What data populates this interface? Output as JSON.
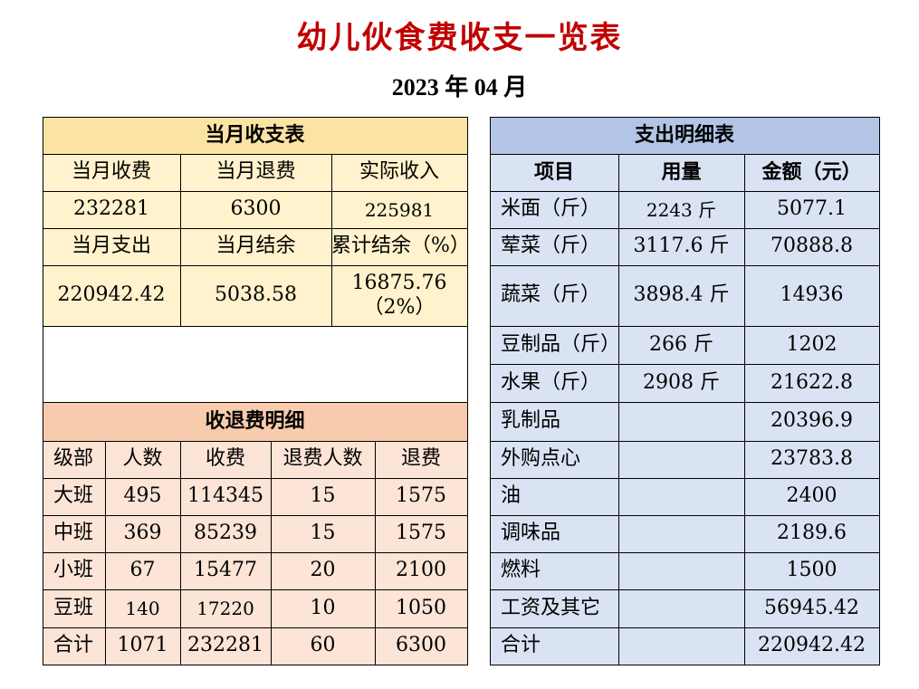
{
  "title": "幼儿伙食费收支一览表",
  "subtitle": "2023 年 04 月",
  "income_table": {
    "title": "当月收支表",
    "row1_labels": [
      "当月收费",
      "当月退费",
      "实际收入"
    ],
    "row1_values": [
      "232281",
      "6300",
      "225981"
    ],
    "row2_labels": [
      "当月支出",
      "当月结余",
      "累计结余（%）"
    ],
    "row2_values": [
      "220942.42",
      "5038.58",
      "16875.76",
      "（2%）"
    ]
  },
  "refund_table": {
    "title": "收退费明细",
    "headers": [
      "级部",
      "人数",
      "收费",
      "退费人数",
      "退费"
    ],
    "rows": [
      [
        "大班",
        "495",
        "114345",
        "15",
        "1575"
      ],
      [
        "中班",
        "369",
        "85239",
        "15",
        "1575"
      ],
      [
        "小班",
        "67",
        "15477",
        "20",
        "2100"
      ],
      [
        "豆班",
        "140",
        "17220",
        "10",
        "1050"
      ],
      [
        "合计",
        "1071",
        "232281",
        "60",
        "6300"
      ]
    ]
  },
  "expense_table": {
    "title": "支出明细表",
    "headers": [
      "项目",
      "用量",
      "金额（元）"
    ],
    "rows": [
      [
        "米面（斤）",
        "2243 斤",
        "5077.1"
      ],
      [
        "荤菜（斤）",
        "3117.6 斤",
        "70888.8"
      ],
      [
        "蔬菜（斤）",
        "3898.4 斤",
        "14936"
      ],
      [
        "豆制品（斤）",
        "266 斤",
        "1202"
      ],
      [
        "水果（斤）",
        "2908 斤",
        "21622.8"
      ],
      [
        "乳制品",
        "",
        "20396.9"
      ],
      [
        "外购点心",
        "",
        "23783.8"
      ],
      [
        "油",
        "",
        "2400"
      ],
      [
        "调味品",
        "",
        "2189.6"
      ],
      [
        "燃料",
        "",
        "1500"
      ],
      [
        "工资及其它",
        "",
        "56945.42"
      ],
      [
        "合计",
        "",
        "220942.42"
      ]
    ]
  },
  "colors": {
    "title_red": "#c00000",
    "header_yellow": "#fbe3a3",
    "cell_yellow": "#fff2cc",
    "header_orange": "#f8cbad",
    "cell_orange": "#fce4d6",
    "header_blue": "#b4c6e7",
    "cell_blue": "#dae3f3"
  }
}
